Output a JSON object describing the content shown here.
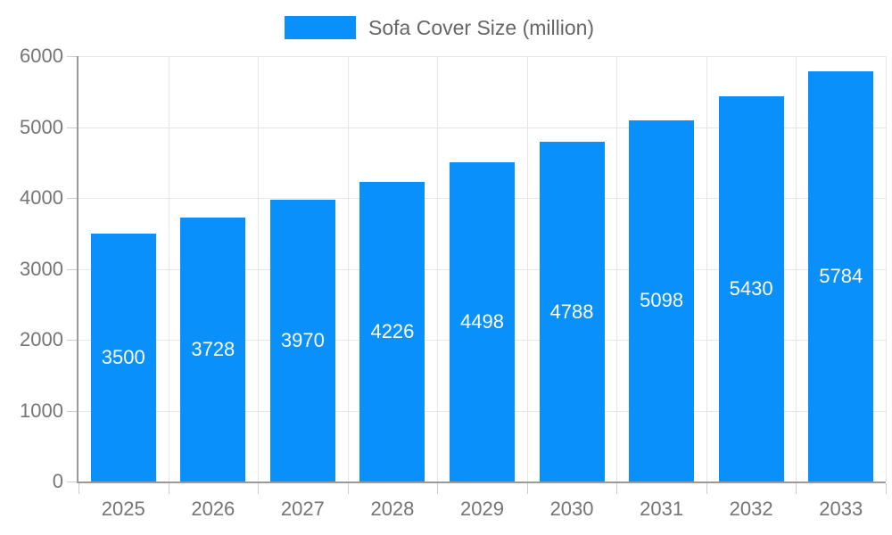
{
  "chart_data": {
    "type": "bar",
    "title": "",
    "xlabel": "",
    "ylabel": "",
    "legend": {
      "entries": [
        "Sofa Cover Size (million)"
      ],
      "position": "top-center"
    },
    "categories": [
      "2025",
      "2026",
      "2027",
      "2028",
      "2029",
      "2030",
      "2031",
      "2032",
      "2033"
    ],
    "series": [
      {
        "name": "Sofa Cover Size (million)",
        "values": [
          3500,
          3728,
          3970,
          4226,
          4498,
          4788,
          5098,
          5430,
          5784
        ]
      }
    ],
    "ylim": [
      0,
      6000
    ],
    "y_ticks": [
      0,
      1000,
      2000,
      3000,
      4000,
      5000,
      6000
    ],
    "grid": true,
    "value_labels": {
      "visible": true,
      "position": "inside-center"
    }
  },
  "colors": {
    "bar": "#0990fa",
    "grid": "#e6e6e6",
    "axis": "#999999",
    "tick": "#cccccc",
    "axis_text": "#757575",
    "legend_text": "#666666",
    "value_text": "#ffffff",
    "background": "#ffffff"
  }
}
